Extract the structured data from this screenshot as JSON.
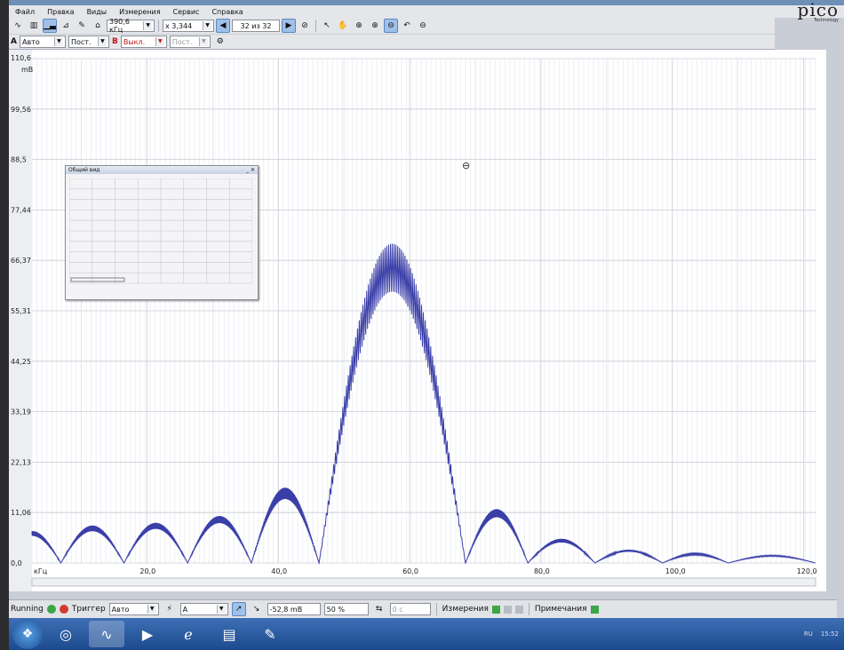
{
  "menu": [
    "Файл",
    "Правка",
    "Виды",
    "Измерения",
    "Сервис",
    "Справка"
  ],
  "logo": {
    "text": "pico",
    "sub": "Technology"
  },
  "toolbar": {
    "sample_rate": "390,6 кГц",
    "zoom": "x 3,344",
    "capture_count": "32 из 32"
  },
  "channels": {
    "a_label": "A",
    "a_range": "Авто",
    "a_coupling": "Пост.",
    "b_label": "B",
    "b_range": "Выкл.",
    "b_coupling": "Пост."
  },
  "overview": {
    "title": "Общий вид"
  },
  "status": {
    "run_state": "Running",
    "trigger_label": "Триггер",
    "trigger_mode": "Авто",
    "trigger_channel": "A",
    "trigger_level": "-52,8 mB",
    "pretrigger": "50 %",
    "delay": "0 c",
    "measurements_label": "Измерения",
    "notes_label": "Примечания"
  },
  "tray": {
    "lang": "RU",
    "time": "15:52"
  },
  "chart_data": {
    "type": "line",
    "ylabel": "mB",
    "xlabel": "кГц",
    "y_top_label": "110,6",
    "y_ticks": [
      "110,6",
      "99,56",
      "88,5",
      "77,44",
      "66,37",
      "55,31",
      "44,25",
      "33,19",
      "22,13",
      "11,06",
      "0,0"
    ],
    "x_ticks": [
      "20,0",
      "40,0",
      "60,0",
      "80,0",
      "100,0",
      "120,0"
    ],
    "xlim": [
      2.5,
      121.8
    ],
    "ylim": [
      0,
      110.6
    ],
    "grid": true,
    "color": "#3a3fa8",
    "series": [
      {
        "lobes": [
          {
            "x_start": 2.5,
            "x_end": 6.9,
            "peak": 7.0
          },
          {
            "x_start": 6.9,
            "x_end": 16.5,
            "peak": 8.2
          },
          {
            "x_start": 16.5,
            "x_end": 26.2,
            "peak": 8.8
          },
          {
            "x_start": 26.2,
            "x_end": 35.9,
            "peak": 10.3
          },
          {
            "x_start": 35.9,
            "x_end": 46.2,
            "peak": 16.5
          },
          {
            "x_start": 46.2,
            "x_end": 68.5,
            "peak": 70.0
          },
          {
            "x_start": 68.5,
            "x_end": 78.0,
            "peak": 11.8
          },
          {
            "x_start": 78.0,
            "x_end": 88.2,
            "peak": 5.3
          },
          {
            "x_start": 88.2,
            "x_end": 98.5,
            "peak": 2.9
          },
          {
            "x_start": 98.5,
            "x_end": 108.5,
            "peak": 2.1
          },
          {
            "x_start": 108.5,
            "x_end": 121.8,
            "peak": 1.7
          }
        ]
      }
    ]
  }
}
